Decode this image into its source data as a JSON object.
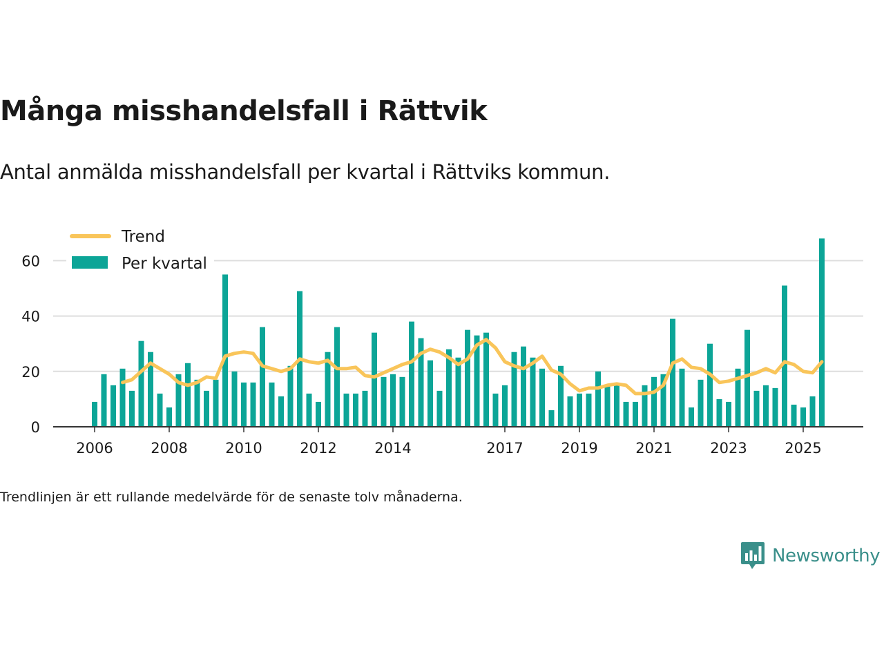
{
  "title": "Många misshandelsfall i Rättvik",
  "subtitle": "Antal anmälda misshandelsfall per kvartal i Rättviks kommun.",
  "footnote": "Trendlinjen är ett rullande medelvärde för de senaste tolv månaderna.",
  "brand": {
    "name": "Newsworthy",
    "icon": "newsworthy-logo-icon"
  },
  "colors": {
    "bars": "#0ca597",
    "trend": "#f9c55a",
    "grid": "#dedede",
    "axis": "#333333"
  },
  "chart_data": {
    "type": "bar",
    "x_start_year": 2006,
    "quarters_per_year": 4,
    "ylim": [
      0,
      68
    ],
    "yticks": [
      0,
      20,
      40,
      60
    ],
    "xticks": [
      "2006",
      "2008",
      "2010",
      "2012",
      "2014",
      "2017",
      "2019",
      "2021",
      "2023",
      "2025"
    ],
    "xtick_positions": [
      2006,
      2008,
      2010,
      2012,
      2014,
      2017,
      2019,
      2021,
      2023,
      2025
    ],
    "legend": {
      "trend": "Trend",
      "bars": "Per kvartal"
    },
    "series": [
      {
        "name": "Per kvartal",
        "type": "bar",
        "values": [
          9,
          19,
          15,
          21,
          13,
          31,
          27,
          12,
          7,
          19,
          23,
          17,
          13,
          17,
          55,
          20,
          16,
          16,
          36,
          16,
          11,
          22,
          49,
          12,
          9,
          27,
          36,
          12,
          12,
          13,
          34,
          18,
          19,
          18,
          38,
          32,
          24,
          13,
          28,
          25,
          35,
          33,
          34,
          12,
          15,
          27,
          29,
          25,
          21,
          6,
          22,
          11,
          12,
          12,
          20,
          15,
          15,
          9,
          9,
          15,
          18,
          19,
          39,
          21,
          7,
          17,
          30,
          10,
          9,
          21,
          35,
          13,
          15,
          14,
          51,
          8,
          7,
          11,
          68
        ]
      },
      {
        "name": "Trend",
        "type": "line",
        "start_index": 3,
        "values": [
          16,
          17,
          20,
          23,
          21,
          19,
          16,
          15,
          16,
          18,
          17.5,
          25.5,
          26.5,
          27,
          26.5,
          22,
          21,
          20,
          21,
          24.5,
          23.5,
          23,
          24,
          21,
          21,
          21.5,
          18.5,
          18,
          19.5,
          21,
          22.5,
          23.5,
          26.5,
          28,
          27,
          25,
          22.5,
          24.5,
          29.5,
          31.5,
          28.5,
          23.5,
          22,
          21,
          23,
          25.5,
          20.5,
          19,
          15.5,
          13,
          14,
          14,
          15,
          15.5,
          15,
          12,
          12,
          12.5,
          15,
          23,
          24.5,
          21.5,
          21,
          19,
          16,
          16.5,
          17.5,
          18.5,
          19.5,
          21,
          19.5,
          23.5,
          22.5,
          20,
          19.5,
          23.5
        ]
      }
    ]
  }
}
